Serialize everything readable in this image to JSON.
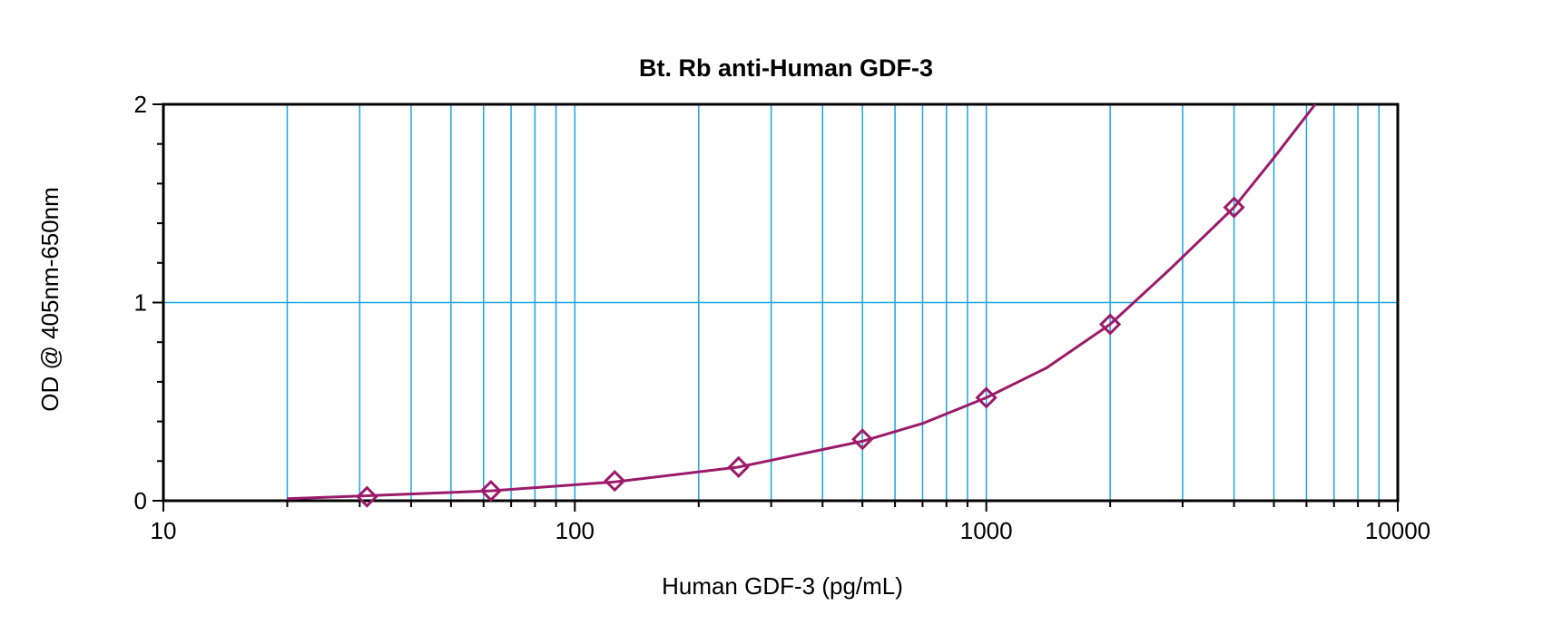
{
  "chart_data": {
    "type": "line",
    "title": "Bt. Rb anti-Human GDF-3",
    "xlabel": "Human GDF-3 (pg/mL)",
    "ylabel": "OD @ 405nm-650nm",
    "xscale": "log",
    "xlim": [
      10,
      10000
    ],
    "ylim": [
      0,
      2
    ],
    "x_ticks": [
      "10",
      "100",
      "1000",
      "10000"
    ],
    "y_ticks": [
      "0",
      "1",
      "2"
    ],
    "grid": true,
    "colors": {
      "curve": "#9B1B6B",
      "grid": "#1BA5E0",
      "frame": "#000000"
    },
    "series": [
      {
        "marker": "diamond",
        "points": [
          {
            "x": 31.25,
            "y": 0.02
          },
          {
            "x": 62.5,
            "y": 0.05
          },
          {
            "x": 125,
            "y": 0.1
          },
          {
            "x": 250,
            "y": 0.17
          },
          {
            "x": 500,
            "y": 0.31
          },
          {
            "x": 1000,
            "y": 0.52
          },
          {
            "x": 2000,
            "y": 0.89
          },
          {
            "x": 4000,
            "y": 1.48
          }
        ]
      }
    ],
    "fit_curve": [
      {
        "x": 20,
        "y": 0.01
      },
      {
        "x": 31.25,
        "y": 0.025
      },
      {
        "x": 62.5,
        "y": 0.05
      },
      {
        "x": 125,
        "y": 0.095
      },
      {
        "x": 250,
        "y": 0.17
      },
      {
        "x": 500,
        "y": 0.3
      },
      {
        "x": 700,
        "y": 0.39
      },
      {
        "x": 1000,
        "y": 0.52
      },
      {
        "x": 1400,
        "y": 0.67
      },
      {
        "x": 2000,
        "y": 0.89
      },
      {
        "x": 2800,
        "y": 1.17
      },
      {
        "x": 4000,
        "y": 1.48
      },
      {
        "x": 5000,
        "y": 1.73
      },
      {
        "x": 6300,
        "y": 2.0
      }
    ]
  }
}
